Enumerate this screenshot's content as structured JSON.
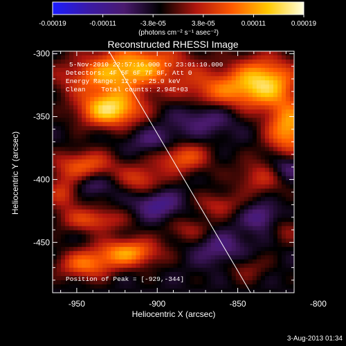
{
  "colorbar": {
    "tick_labels": [
      "-0.00019",
      "-0.00011",
      "-3.8e-05",
      "3.8e-05",
      "0.00011",
      "0.00019"
    ],
    "units_label": "(photons cm⁻² s⁻¹ asec⁻²)",
    "range": [
      -0.00019,
      0.00019
    ],
    "colors": [
      "#1c1cff",
      "#3a1aa6",
      "#4a1a6e",
      "#000000",
      "#b0160e",
      "#ff5a00",
      "#ffc800",
      "#ffffe0"
    ]
  },
  "chart_data": {
    "type": "heatmap",
    "title": "Reconstructed RHESSI Image",
    "xlabel": "Heliocentric X (arcsec)",
    "ylabel": "Heliocentric Y (arcsec)",
    "xlim": [
      -965,
      -815
    ],
    "ylim": [
      -490,
      -298
    ],
    "x_ticks": [
      -950,
      -900,
      -850,
      -800
    ],
    "y_ticks": [
      -300,
      -350,
      -400,
      -450
    ],
    "annotations": [
      "5-Nov-2010 22:57:16.000 to 23:01:10.000",
      "Detectors: 4F 5F 6F 7F 8F, Att 0",
      "Energy Range: 12.0 - 25.0 keV",
      "Clean    Total counts: 2.94E+03"
    ],
    "peak_label": "Position of Peak = [-929,-344]",
    "peak_position": [
      -929,
      -344
    ],
    "limb_line": [
      [
        -930,
        -298
      ],
      [
        -842,
        -490
      ]
    ],
    "grid": false,
    "sources": [
      {
        "x": -929,
        "y": -344,
        "amp": 1.0,
        "sx": 14,
        "sy": 10
      },
      {
        "x": -912,
        "y": -308,
        "amp": 0.7,
        "sx": 22,
        "sy": 12
      },
      {
        "x": -935,
        "y": -320,
        "amp": 0.45,
        "sx": 22,
        "sy": 10
      },
      {
        "x": -862,
        "y": -330,
        "amp": 0.55,
        "sx": 18,
        "sy": 12
      },
      {
        "x": -833,
        "y": -322,
        "amp": 0.85,
        "sx": 14,
        "sy": 14
      },
      {
        "x": -818,
        "y": -360,
        "amp": 0.8,
        "sx": 10,
        "sy": 16
      },
      {
        "x": -885,
        "y": -382,
        "amp": 0.6,
        "sx": 12,
        "sy": 9
      },
      {
        "x": -945,
        "y": -388,
        "amp": 0.55,
        "sx": 14,
        "sy": 8
      },
      {
        "x": -910,
        "y": -400,
        "amp": 0.45,
        "sx": 10,
        "sy": 8
      },
      {
        "x": -958,
        "y": -410,
        "amp": 0.45,
        "sx": 8,
        "sy": 10
      },
      {
        "x": -940,
        "y": -432,
        "amp": 0.5,
        "sx": 14,
        "sy": 7
      },
      {
        "x": -835,
        "y": -398,
        "amp": 0.4,
        "sx": 12,
        "sy": 10
      },
      {
        "x": -862,
        "y": -420,
        "amp": 0.35,
        "sx": 10,
        "sy": 7
      },
      {
        "x": -918,
        "y": -458,
        "amp": 0.75,
        "sx": 14,
        "sy": 8
      },
      {
        "x": -945,
        "y": -468,
        "amp": 0.6,
        "sx": 12,
        "sy": 8
      },
      {
        "x": -880,
        "y": -440,
        "amp": 0.3,
        "sx": 10,
        "sy": 7
      },
      {
        "x": -845,
        "y": -470,
        "amp": 0.25,
        "sx": 10,
        "sy": 8
      },
      {
        "x": -820,
        "y": -440,
        "amp": 0.25,
        "sx": 8,
        "sy": 8
      },
      {
        "x": -870,
        "y": -350,
        "amp": -0.35,
        "sx": 14,
        "sy": 10
      },
      {
        "x": -820,
        "y": -390,
        "amp": -0.45,
        "sx": 8,
        "sy": 8
      },
      {
        "x": -900,
        "y": -370,
        "amp": -0.3,
        "sx": 12,
        "sy": 8
      },
      {
        "x": -900,
        "y": -420,
        "amp": -0.4,
        "sx": 10,
        "sy": 8
      },
      {
        "x": -860,
        "y": -455,
        "amp": -0.3,
        "sx": 12,
        "sy": 10
      },
      {
        "x": -835,
        "y": -430,
        "amp": -0.35,
        "sx": 8,
        "sy": 8
      },
      {
        "x": -940,
        "y": -405,
        "amp": -0.25,
        "sx": 10,
        "sy": 6
      }
    ],
    "background_level": -0.18
  },
  "footer": {
    "timestamp": "3-Aug-2013 01:34"
  }
}
